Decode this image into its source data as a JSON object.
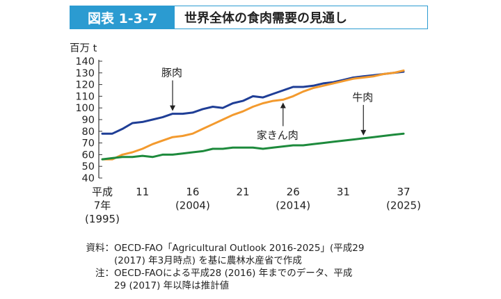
{
  "header": {
    "figure_label": "図表 1-3-7",
    "title": "世界全体の食肉需要の見通し"
  },
  "chart_data": {
    "type": "line",
    "ylabel": "百万 t",
    "ylim": [
      40,
      140
    ],
    "yticks": [
      40,
      50,
      60,
      70,
      80,
      90,
      100,
      110,
      120,
      130,
      140
    ],
    "xlim": [
      7,
      37
    ],
    "x": [
      7,
      8,
      9,
      10,
      11,
      12,
      13,
      14,
      15,
      16,
      17,
      18,
      19,
      20,
      21,
      22,
      23,
      24,
      25,
      26,
      27,
      28,
      29,
      30,
      31,
      32,
      33,
      34,
      35,
      36,
      37
    ],
    "xticks": [
      {
        "x": 7,
        "lines": [
          "平成",
          "7年",
          "(1995)"
        ]
      },
      {
        "x": 11,
        "lines": [
          "11"
        ]
      },
      {
        "x": 16,
        "lines": [
          "16",
          "(2004)"
        ]
      },
      {
        "x": 21,
        "lines": [
          "21"
        ]
      },
      {
        "x": 26,
        "lines": [
          "26",
          "(2014)"
        ]
      },
      {
        "x": 31,
        "lines": [
          "31"
        ]
      },
      {
        "x": 37,
        "lines": [
          "37",
          "(2025)"
        ]
      }
    ],
    "series": [
      {
        "name": "豚肉",
        "color": "#1f3e96",
        "values": [
          78,
          78,
          82,
          87,
          88,
          90,
          92,
          95,
          95,
          96,
          99,
          101,
          100,
          104,
          106,
          110,
          109,
          112,
          115,
          118,
          118,
          119,
          121,
          122,
          124,
          126,
          127,
          128,
          129,
          130,
          131
        ]
      },
      {
        "name": "家きん肉",
        "color": "#f39a2e",
        "values": [
          56,
          56,
          60,
          62,
          65,
          69,
          72,
          75,
          76,
          78,
          82,
          86,
          90,
          94,
          97,
          101,
          104,
          106,
          107,
          110,
          114,
          117,
          119,
          121,
          123,
          125,
          126,
          127,
          129,
          130,
          132
        ]
      },
      {
        "name": "牛肉",
        "color": "#1d8a3c",
        "values": [
          56,
          57,
          58,
          58,
          59,
          58,
          60,
          60,
          61,
          62,
          63,
          65,
          65,
          66,
          66,
          66,
          65,
          66,
          67,
          68,
          68,
          69,
          70,
          71,
          72,
          73,
          74,
          75,
          76,
          77,
          78
        ]
      }
    ],
    "annotations": [
      {
        "text": "豚肉",
        "series": "豚肉",
        "x": 14
      },
      {
        "text": "家きん肉",
        "series": "家きん肉",
        "x": 25
      },
      {
        "text": "牛肉",
        "series": "牛肉",
        "x": 33
      }
    ]
  },
  "notes": [
    {
      "key": "資料：",
      "lines": [
        "OECD-FAO「Agricultural Outlook 2016-2025」(平成29",
        "(2017) 年3月時点) を基に農林水産省で作成"
      ]
    },
    {
      "key": "注：",
      "lines": [
        "OECD-FAOによる平成28 (2016) 年までのデータ、平成",
        "29 (2017) 年以降は推計値"
      ]
    }
  ]
}
